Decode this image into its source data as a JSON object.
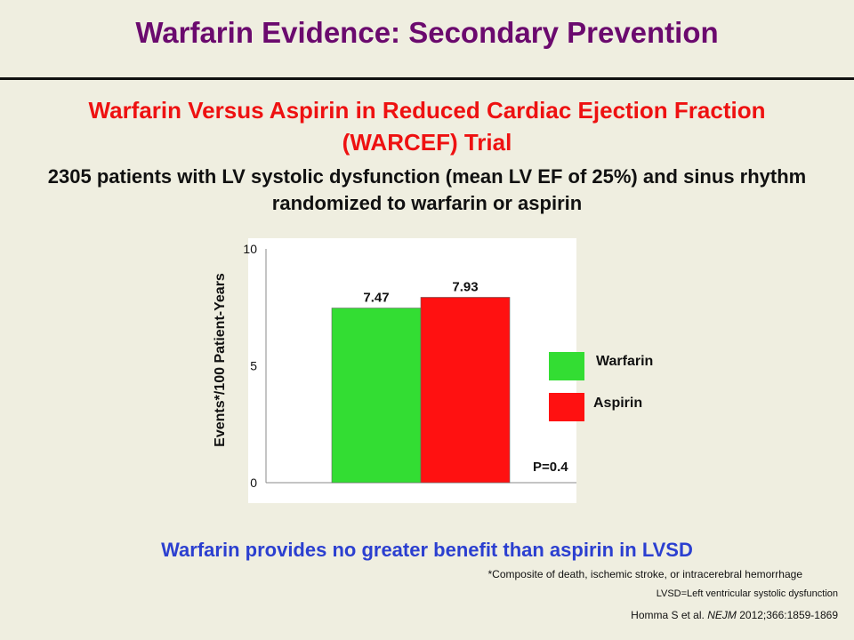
{
  "slide": {
    "title": "Warfarin Evidence: Secondary Prevention",
    "trial_name": "Warfarin Versus Aspirin in Reduced Cardiac Ejection Fraction (WARCEF) Trial",
    "trial_description": "2305 patients with LV systolic dysfunction (mean LV EF of 25%) and sinus rhythm randomized to warfarin or aspirin",
    "conclusion": "Warfarin provides no greater benefit than aspirin in LVSD",
    "footnote": "*Composite of death, ischemic stroke, or intracerebral hemorrhage",
    "abbreviation": "LVSD=Left ventricular systolic dysfunction",
    "citation_authors": "Homma S et al.",
    "citation_journal": "NEJM",
    "citation_ref": "2012;366:1859-1869"
  },
  "chart_data": {
    "type": "bar",
    "categories": [
      "Warfarin",
      "Aspirin"
    ],
    "values": [
      7.47,
      7.93
    ],
    "data_labels": [
      "7.47",
      "7.93"
    ],
    "series_colors": [
      "#33dd33",
      "#ff1111"
    ],
    "xlabel": "",
    "ylabel": "Events*/100 Patient-Years",
    "ylim": [
      0,
      10
    ],
    "yticks": [
      "0",
      "5",
      "10"
    ],
    "annotation": "P=0.4",
    "grid": false,
    "legend": {
      "placement": "right",
      "entries": [
        "Warfarin",
        "Aspirin"
      ]
    }
  }
}
